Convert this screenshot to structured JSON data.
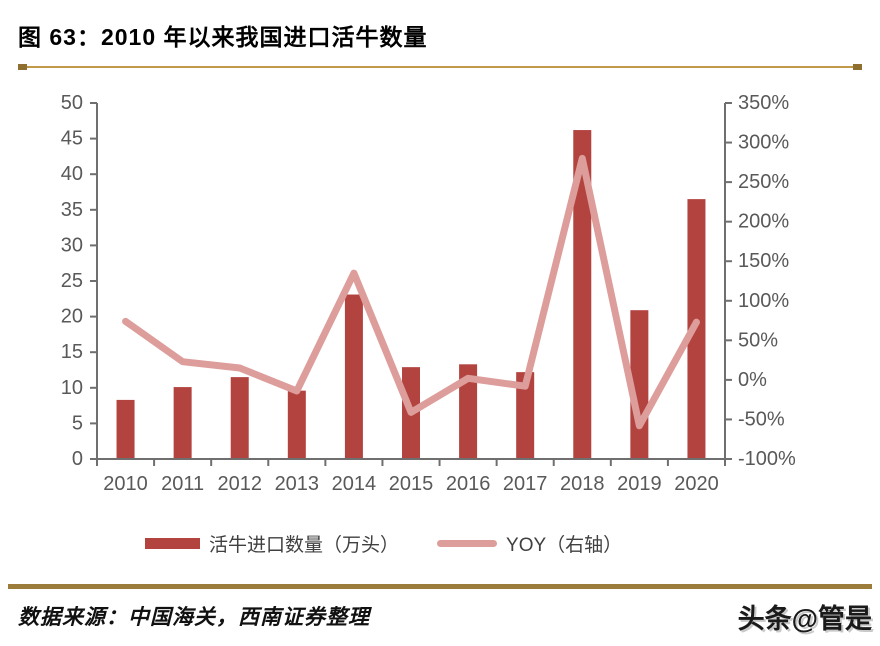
{
  "header": {
    "figure_title": "图 63：2010 年以来我国进口活牛数量"
  },
  "chart_data": {
    "type": "bar",
    "title": "2010 年以来我国进口活牛数量",
    "categories": [
      "2010",
      "2011",
      "2012",
      "2013",
      "2014",
      "2015",
      "2016",
      "2017",
      "2018",
      "2019",
      "2020"
    ],
    "series": [
      {
        "name": "活牛进口数量（万头）",
        "type": "bar",
        "axis": "left",
        "color": "#B2433F",
        "values": [
          8.3,
          10.1,
          11.5,
          9.6,
          23.1,
          12.9,
          13.3,
          12.2,
          46.2,
          20.9,
          36.5
        ]
      },
      {
        "name": "YOY（右轴）",
        "type": "line",
        "axis": "right",
        "color": "#DD9D9B",
        "unit": "%",
        "values": [
          74,
          23,
          15,
          -14,
          135,
          -41,
          2,
          -8,
          280,
          -58,
          73
        ]
      }
    ],
    "left_axis": {
      "min": 0,
      "max": 50,
      "step": 5,
      "tick_labels": [
        "0",
        "5",
        "10",
        "15",
        "20",
        "25",
        "30",
        "35",
        "40",
        "45",
        "50"
      ]
    },
    "right_axis": {
      "min": -100,
      "max": 350,
      "step": 50,
      "tick_labels": [
        "-100%",
        "-50%",
        "0%",
        "50%",
        "100%",
        "150%",
        "200%",
        "250%",
        "300%",
        "350%"
      ]
    },
    "grid": false,
    "legend_position": "bottom"
  },
  "footer": {
    "source": "数据来源：中国海关，西南证券整理",
    "watermark": "头条@管是"
  },
  "colors": {
    "bar": "#B2433F",
    "line": "#DD9D9B",
    "axis": "#6F6F6F",
    "tick_label": "#595959",
    "title_rule": "#C2994A",
    "title_rule_cap": "#8E6F2F",
    "footer_rule": "#9C7C3B"
  }
}
